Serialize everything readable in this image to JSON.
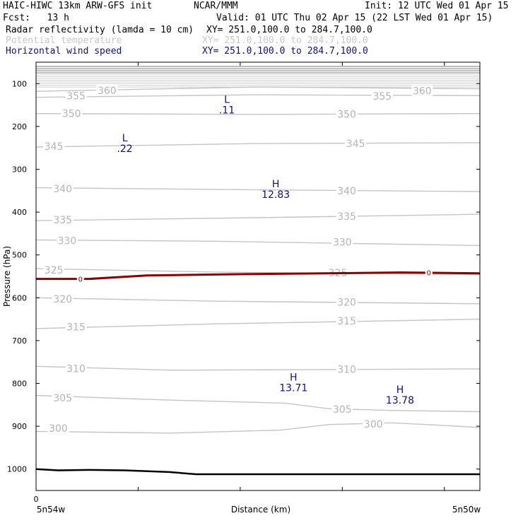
{
  "header": {
    "model": "HAIC-HIWC 13km ARW-GFS init",
    "org": "NCAR/MMM",
    "init": "Init: 12 UTC Wed 01 Apr 15",
    "fcst": "Fcst:   13 h",
    "valid": "Valid: 01 UTC Thu 02 Apr 15 (22 LST Wed 01 Apr 15)",
    "fields": [
      {
        "name": "Radar reflectivity (lamda = 10 cm)",
        "xy": "XY= 251.0,100.0 to 284.7,100.0",
        "color": "#000000"
      },
      {
        "name": "Potential temperature",
        "xy": "XY= 251.0,100.0 to 284.7,100.0",
        "color": "#c8c8c8"
      },
      {
        "name": "Horizontal wind speed",
        "xy": "XY= 251.0,100.0 to 284.7,100.0",
        "color": "#10107a"
      }
    ]
  },
  "chart_data": {
    "type": "line",
    "xlabel": "Distance (km)",
    "ylabel": "Pressure (hPa)",
    "y_ticks": [
      100,
      200,
      300,
      400,
      500,
      600,
      700,
      800,
      900,
      1000
    ],
    "x_tick_labels": {
      "left_value": "0",
      "left_lonlat": "5n54w",
      "right_lonlat": "5n50w"
    },
    "xlim_frac": [
      0,
      1
    ],
    "ylim": [
      50,
      1050
    ],
    "isentropes": [
      {
        "theta": 300,
        "points": [
          [
            0,
            912
          ],
          [
            0.3,
            916
          ],
          [
            0.55,
            909
          ],
          [
            0.66,
            896
          ],
          [
            0.8,
            892
          ],
          [
            0.9,
            897
          ],
          [
            1,
            903
          ]
        ],
        "labels": [
          {
            "at": [
              0.05,
              905
            ],
            "text": "300"
          },
          {
            "at": [
              0.76,
              895
            ],
            "text": "300"
          }
        ]
      },
      {
        "theta": 305,
        "points": [
          [
            0,
            828
          ],
          [
            0.3,
            839
          ],
          [
            0.56,
            846
          ],
          [
            0.66,
            859
          ],
          [
            0.8,
            863
          ],
          [
            1,
            866
          ]
        ],
        "labels": [
          {
            "at": [
              0.06,
              834
            ],
            "text": "305"
          },
          {
            "at": [
              0.69,
              860
            ],
            "text": "305"
          }
        ]
      },
      {
        "theta": 310,
        "points": [
          [
            0,
            760
          ],
          [
            0.3,
            769
          ],
          [
            0.6,
            768
          ],
          [
            1,
            766
          ]
        ],
        "labels": [
          {
            "at": [
              0.09,
              765
            ],
            "text": "310"
          },
          {
            "at": [
              0.7,
              767
            ],
            "text": "310"
          }
        ]
      },
      {
        "theta": 315,
        "points": [
          [
            0,
            672
          ],
          [
            0.4,
            661
          ],
          [
            1,
            650
          ]
        ],
        "labels": [
          {
            "at": [
              0.09,
              668
            ],
            "text": "315"
          },
          {
            "at": [
              0.7,
              654
            ],
            "text": "315"
          }
        ]
      },
      {
        "theta": 320,
        "points": [
          [
            0,
            600
          ],
          [
            0.4,
            608
          ],
          [
            1,
            614
          ]
        ],
        "labels": [
          {
            "at": [
              0.06,
              603
            ],
            "text": "320"
          },
          {
            "at": [
              0.7,
              610
            ],
            "text": "320"
          }
        ]
      },
      {
        "theta": 325,
        "points": [
          [
            0,
            532
          ],
          [
            0.4,
            540
          ],
          [
            1,
            546
          ]
        ],
        "labels": [
          {
            "at": [
              0.04,
              535
            ],
            "text": "325"
          },
          {
            "at": [
              0.68,
              542
            ],
            "text": "325"
          }
        ]
      },
      {
        "theta": 330,
        "points": [
          [
            0,
            465
          ],
          [
            0.4,
            468
          ],
          [
            1,
            478
          ]
        ],
        "labels": [
          {
            "at": [
              0.07,
              467
            ],
            "text": "330"
          },
          {
            "at": [
              0.69,
              470
            ],
            "text": "330"
          }
        ]
      },
      {
        "theta": 335,
        "points": [
          [
            0,
            420
          ],
          [
            0.5,
            413
          ],
          [
            1,
            405
          ]
        ],
        "labels": [
          {
            "at": [
              0.06,
              418
            ],
            "text": "335"
          },
          {
            "at": [
              0.7,
              410
            ],
            "text": "335"
          }
        ]
      },
      {
        "theta": 340,
        "points": [
          [
            0,
            343
          ],
          [
            0.5,
            348
          ],
          [
            1,
            352
          ]
        ],
        "labels": [
          {
            "at": [
              0.06,
              345
            ],
            "text": "340"
          },
          {
            "at": [
              0.7,
              350
            ],
            "text": "340"
          }
        ]
      },
      {
        "theta": 345,
        "points": [
          [
            0,
            248
          ],
          [
            0.5,
            240
          ],
          [
            1,
            238
          ]
        ],
        "labels": [
          {
            "at": [
              0.04,
              246
            ],
            "text": "345"
          },
          {
            "at": [
              0.72,
              240
            ],
            "text": "345"
          }
        ]
      },
      {
        "theta": 350,
        "points": [
          [
            0,
            170
          ],
          [
            0.5,
            172
          ],
          [
            1,
            170
          ]
        ],
        "labels": [
          {
            "at": [
              0.08,
              170
            ],
            "text": "350"
          },
          {
            "at": [
              0.7,
              171
            ],
            "text": "350"
          }
        ]
      },
      {
        "theta": 355,
        "points": [
          [
            0,
            132
          ],
          [
            0.5,
            126
          ],
          [
            1,
            128
          ]
        ],
        "labels": [
          {
            "at": [
              0.09,
              128
            ],
            "text": "355"
          },
          {
            "at": [
              0.78,
              129
            ],
            "text": "355"
          }
        ]
      },
      {
        "theta": 360,
        "points": [
          [
            0,
            118
          ],
          [
            0.5,
            108
          ],
          [
            1,
            112
          ]
        ],
        "labels": [
          {
            "at": [
              0.16,
              116
            ],
            "text": "360"
          },
          {
            "at": [
              0.87,
              117
            ],
            "text": "360"
          }
        ]
      }
    ],
    "upper_lines": [
      60,
      65,
      70,
      75,
      80,
      84,
      88,
      92,
      96,
      100,
      104,
      108
    ],
    "reflectivity_contour": {
      "label": "0",
      "color": "#8b0000",
      "points": [
        [
          0,
          556
        ],
        [
          0.12,
          556
        ],
        [
          0.25,
          548
        ],
        [
          0.45,
          545
        ],
        [
          0.65,
          543
        ],
        [
          0.82,
          541
        ],
        [
          1,
          543
        ]
      ],
      "label_at": [
        [
          0.1,
          556
        ],
        [
          0.885,
          541
        ]
      ]
    },
    "wind_extrema": [
      {
        "type": "L",
        "value": ".11",
        "x": 0.43,
        "p": 145
      },
      {
        "type": "L",
        "value": ".22",
        "x": 0.2,
        "p": 235
      },
      {
        "type": "H",
        "value": "12.83",
        "x": 0.54,
        "p": 342
      },
      {
        "type": "H",
        "value": "13.71",
        "x": 0.58,
        "p": 793
      },
      {
        "type": "H",
        "value": "13.78",
        "x": 0.82,
        "p": 822
      }
    ],
    "surface": {
      "color": "#000000",
      "points": [
        [
          0,
          1000
        ],
        [
          0.05,
          1003
        ],
        [
          0.12,
          1002
        ],
        [
          0.2,
          1003
        ],
        [
          0.3,
          1007
        ],
        [
          0.36,
          1012
        ],
        [
          1,
          1012
        ]
      ]
    }
  }
}
